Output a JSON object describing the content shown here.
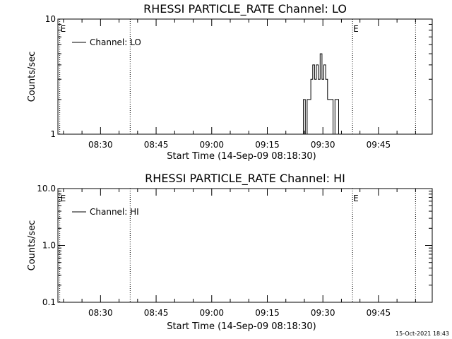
{
  "footer": {
    "timestamp": "15-Oct-2021 18:43"
  },
  "chart_data": [
    {
      "type": "line",
      "title": "RHESSI PARTICLE_RATE Channel: LO",
      "xlabel": "Start Time (14-Sep-09 08:18:30)",
      "ylabel": "Counts/sec",
      "y_scale": "log",
      "ylim": [
        1,
        10
      ],
      "ytick_labels": [
        "1",
        "10"
      ],
      "xlim": [
        "08:18:30",
        "09:59:30"
      ],
      "xtick_labels": [
        "08:30",
        "08:45",
        "09:00",
        "09:15",
        "09:30",
        "09:45"
      ],
      "legend": {
        "position": "top-left",
        "entries": [
          "Channel: LO"
        ]
      },
      "markers": [
        {
          "time": "08:19",
          "label": "E"
        },
        {
          "time": "08:38",
          "label": ""
        },
        {
          "time": "09:38",
          "label": "E"
        },
        {
          "time": "09:55",
          "label": ""
        }
      ],
      "series": [
        {
          "name": "Channel: LO",
          "x": [
            "09:24:30",
            "09:25:00",
            "09:25:30",
            "09:26:00",
            "09:26:30",
            "09:27:00",
            "09:27:30",
            "09:28:00",
            "09:28:30",
            "09:29:00",
            "09:29:30",
            "09:30:00",
            "09:30:30",
            "09:31:00",
            "09:31:30",
            "09:32:00",
            "09:32:30",
            "09:33:00",
            "09:33:30",
            "09:34:00",
            "09:34:30",
            "09:35:00"
          ],
          "values": [
            1,
            2,
            1,
            2,
            2,
            3,
            4,
            3,
            4,
            3,
            5,
            3,
            4,
            3,
            2,
            2,
            2,
            1,
            2,
            2,
            1,
            1
          ]
        }
      ]
    },
    {
      "type": "line",
      "title": "RHESSI PARTICLE_RATE Channel: HI",
      "xlabel": "Start Time (14-Sep-09 08:18:30)",
      "ylabel": "Counts/sec",
      "y_scale": "log",
      "ylim": [
        0.1,
        10
      ],
      "ytick_labels": [
        "0.1",
        "1.0",
        "10.0"
      ],
      "xlim": [
        "08:18:30",
        "09:59:30"
      ],
      "xtick_labels": [
        "08:30",
        "08:45",
        "09:00",
        "09:15",
        "09:30",
        "09:45"
      ],
      "legend": {
        "position": "top-left",
        "entries": [
          "Channel: HI"
        ]
      },
      "markers": [
        {
          "time": "08:19",
          "label": "E"
        },
        {
          "time": "08:38",
          "label": ""
        },
        {
          "time": "09:38",
          "label": "E"
        },
        {
          "time": "09:55",
          "label": ""
        }
      ],
      "series": [
        {
          "name": "Channel: HI",
          "x": [],
          "values": []
        }
      ]
    }
  ]
}
